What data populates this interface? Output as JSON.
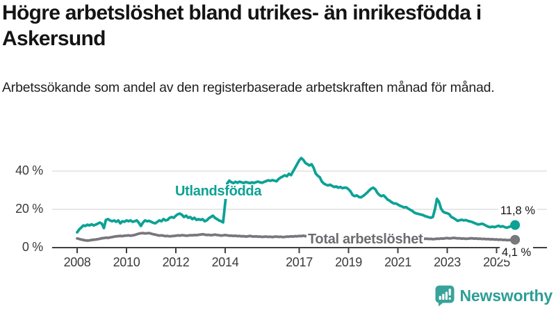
{
  "header": {
    "title_lines": [
      "Högre arbetslöshet bland utrikes- än inrikesfödda i",
      "Askersund"
    ],
    "subtitle": "Arbetssökande som andel av den registerbaserade arbetskraften månad för månad."
  },
  "footer": {
    "brand": "Newsworthy"
  },
  "colors": {
    "accent_teal": "#0ca295",
    "series_gray": "#77777c",
    "label_gray": "#6c6c71",
    "grid": "#d9d9d9",
    "axis": "#3f3f3f",
    "tick_text": "#3a3a3a",
    "text": "#141414",
    "logo_teal": "#38a39a",
    "logo_text_teal": "#2c9e96"
  },
  "chart_data": {
    "type": "line",
    "title": "Högre arbetslöshet bland utrikes- än inrikesfödda i Askersund",
    "subtitle": "Arbetssökande som andel av den registerbaserade arbetskraften månad för månad.",
    "unit": "%",
    "grid": "horizontal-only",
    "ylim": [
      0,
      48
    ],
    "y_ticks": [
      {
        "v": 0,
        "label": "0 %"
      },
      {
        "v": 20,
        "label": "20 %"
      },
      {
        "v": 40,
        "label": "40 %"
      }
    ],
    "x_ticks": [
      {
        "v": 2008,
        "label": "2008"
      },
      {
        "v": 2010,
        "label": "2010"
      },
      {
        "v": 2012,
        "label": "2012"
      },
      {
        "v": 2014,
        "label": "2014"
      },
      {
        "v": 2017,
        "label": "2017"
      },
      {
        "v": 2019,
        "label": "2019"
      },
      {
        "v": 2021,
        "label": "2021"
      },
      {
        "v": 2023,
        "label": "2023"
      },
      {
        "v": 2025,
        "label": "2025"
      }
    ],
    "frequency": "monthly",
    "x_start_year": 2008,
    "series": [
      {
        "name": "Utlandsfödda",
        "color": "#0ca295",
        "end_label": "11,8 %",
        "end_value": 11.8,
        "values": [
          8.0,
          9.5,
          10.5,
          11.6,
          11.3,
          12.0,
          11.6,
          12.2,
          11.6,
          12.0,
          12.5,
          13.1,
          12.5,
          10.2,
          14.5,
          14.9,
          14.2,
          13.8,
          14.2,
          13.5,
          14.2,
          12.7,
          13.8,
          13.5,
          14.2,
          13.8,
          14.2,
          13.5,
          13.8,
          14.2,
          13.0,
          11.3,
          13.1,
          14.2,
          13.8,
          14.0,
          13.5,
          13.0,
          12.7,
          13.5,
          14.2,
          13.8,
          14.9,
          14.2,
          14.5,
          15.6,
          16.0,
          15.6,
          16.7,
          17.5,
          17.8,
          17.1,
          16.0,
          16.7,
          15.6,
          16.0,
          14.9,
          15.6,
          14.5,
          14.9,
          14.5,
          14.9,
          13.8,
          14.2,
          15.3,
          16.0,
          16.7,
          15.6,
          14.9,
          14.2,
          13.8,
          13.2,
          23.3,
          33.6,
          35.0,
          34.2,
          33.7,
          34.4,
          33.9,
          34.5,
          34.1,
          33.8,
          34.3,
          34.0,
          33.7,
          34.1,
          33.8,
          34.2,
          34.5,
          34.1,
          33.9,
          34.4,
          34.8,
          35.2,
          34.9,
          35.3,
          35.0,
          34.7,
          35.9,
          36.6,
          37.2,
          37.8,
          37.3,
          38.6,
          37.9,
          39.8,
          41.7,
          43.6,
          45.6,
          46.8,
          45.9,
          44.3,
          43.6,
          43.0,
          43.6,
          41.8,
          38.8,
          37.6,
          36.8,
          34.6,
          33.5,
          32.9,
          32.5,
          32.9,
          32.3,
          31.7,
          32.0,
          31.3,
          31.7,
          31.1,
          31.3,
          31.3,
          30.5,
          29.3,
          27.5,
          26.9,
          27.3,
          26.5,
          26.3,
          26.9,
          27.8,
          28.7,
          29.9,
          30.8,
          31.3,
          30.5,
          28.7,
          27.5,
          26.9,
          27.3,
          26.3,
          25.1,
          24.5,
          23.7,
          23.1,
          23.1,
          22.5,
          21.9,
          21.5,
          21.0,
          21.2,
          20.4,
          19.8,
          19.2,
          18.3,
          17.9,
          17.6,
          17.3,
          17.1,
          16.6,
          16.2,
          15.9,
          15.6,
          16.0,
          20.0,
          25.5,
          23.9,
          20.4,
          18.8,
          18.2,
          18.0,
          17.4,
          16.0,
          15.5,
          14.8,
          14.0,
          14.3,
          14.6,
          14.2,
          14.4,
          14.0,
          13.7,
          13.4,
          13.0,
          12.5,
          12.1,
          12.3,
          12.5,
          12.0,
          11.4,
          10.9,
          10.7,
          11.0,
          10.7,
          11.1,
          11.4,
          10.9,
          11.2,
          10.7,
          10.4,
          10.8,
          11.2,
          11.5,
          11.8
        ]
      },
      {
        "name": "Total arbetslöshet",
        "color": "#77777c",
        "end_label": "4,1 %",
        "end_value": 4.1,
        "values": [
          4.8,
          4.5,
          4.2,
          4.0,
          3.8,
          3.7,
          3.8,
          4.0,
          4.1,
          4.2,
          4.4,
          4.6,
          4.9,
          5.0,
          5.2,
          5.1,
          5.3,
          5.5,
          5.7,
          5.9,
          6.0,
          6.1,
          6.0,
          6.2,
          6.3,
          6.4,
          6.2,
          6.4,
          6.6,
          7.0,
          7.3,
          7.5,
          7.6,
          7.4,
          7.5,
          7.6,
          7.3,
          7.0,
          6.8,
          6.5,
          6.3,
          6.4,
          6.2,
          6.0,
          6.1,
          5.9,
          6.0,
          6.1,
          6.2,
          6.4,
          6.3,
          6.5,
          6.4,
          6.2,
          6.3,
          6.5,
          6.4,
          6.6,
          6.5,
          6.7,
          6.8,
          7.0,
          6.8,
          6.6,
          6.7,
          6.5,
          6.6,
          6.8,
          6.6,
          6.5,
          6.3,
          6.4,
          6.6,
          6.4,
          6.2,
          6.3,
          6.1,
          6.2,
          6.0,
          6.1,
          5.9,
          6.0,
          5.8,
          5.9,
          6.1,
          5.9,
          5.8,
          5.9,
          5.7,
          5.8,
          5.6,
          5.7,
          5.8,
          5.6,
          5.7,
          5.5,
          5.7,
          5.8,
          5.6,
          5.7,
          5.5,
          5.6,
          5.8,
          5.7,
          5.9,
          5.8,
          6.0,
          5.9,
          6.1,
          6.0,
          6.2,
          6.0,
          6.1,
          5.9,
          6.0,
          5.8,
          5.9,
          5.7,
          5.8,
          5.6,
          5.7,
          5.5,
          5.6,
          5.4,
          5.5,
          5.3,
          5.4,
          5.2,
          5.3,
          5.1,
          5.2,
          5.3,
          5.4,
          5.2,
          5.3,
          5.1,
          5.2,
          5.0,
          5.1,
          4.9,
          5.0,
          5.1,
          5.2,
          5.3,
          5.4,
          5.6,
          5.9,
          6.1,
          6.0,
          5.8,
          5.9,
          5.7,
          5.8,
          5.6,
          5.7,
          5.5,
          5.6,
          5.4,
          5.5,
          5.3,
          5.4,
          5.2,
          5.1,
          4.9,
          5.0,
          4.8,
          4.9,
          4.7,
          4.8,
          4.6,
          4.7,
          4.5,
          4.6,
          4.4,
          4.5,
          4.7,
          4.6,
          4.8,
          4.7,
          4.9,
          5.0,
          4.8,
          4.9,
          5.1,
          5.0,
          4.8,
          4.9,
          4.7,
          4.8,
          4.6,
          4.7,
          4.8,
          4.9,
          4.7,
          4.8,
          4.6,
          4.7,
          4.5,
          4.6,
          4.4,
          4.5,
          4.3,
          4.4,
          4.2,
          4.3,
          4.1,
          4.2,
          4.0,
          4.1,
          3.9,
          4.0,
          3.9,
          4.0,
          4.1
        ]
      }
    ]
  }
}
